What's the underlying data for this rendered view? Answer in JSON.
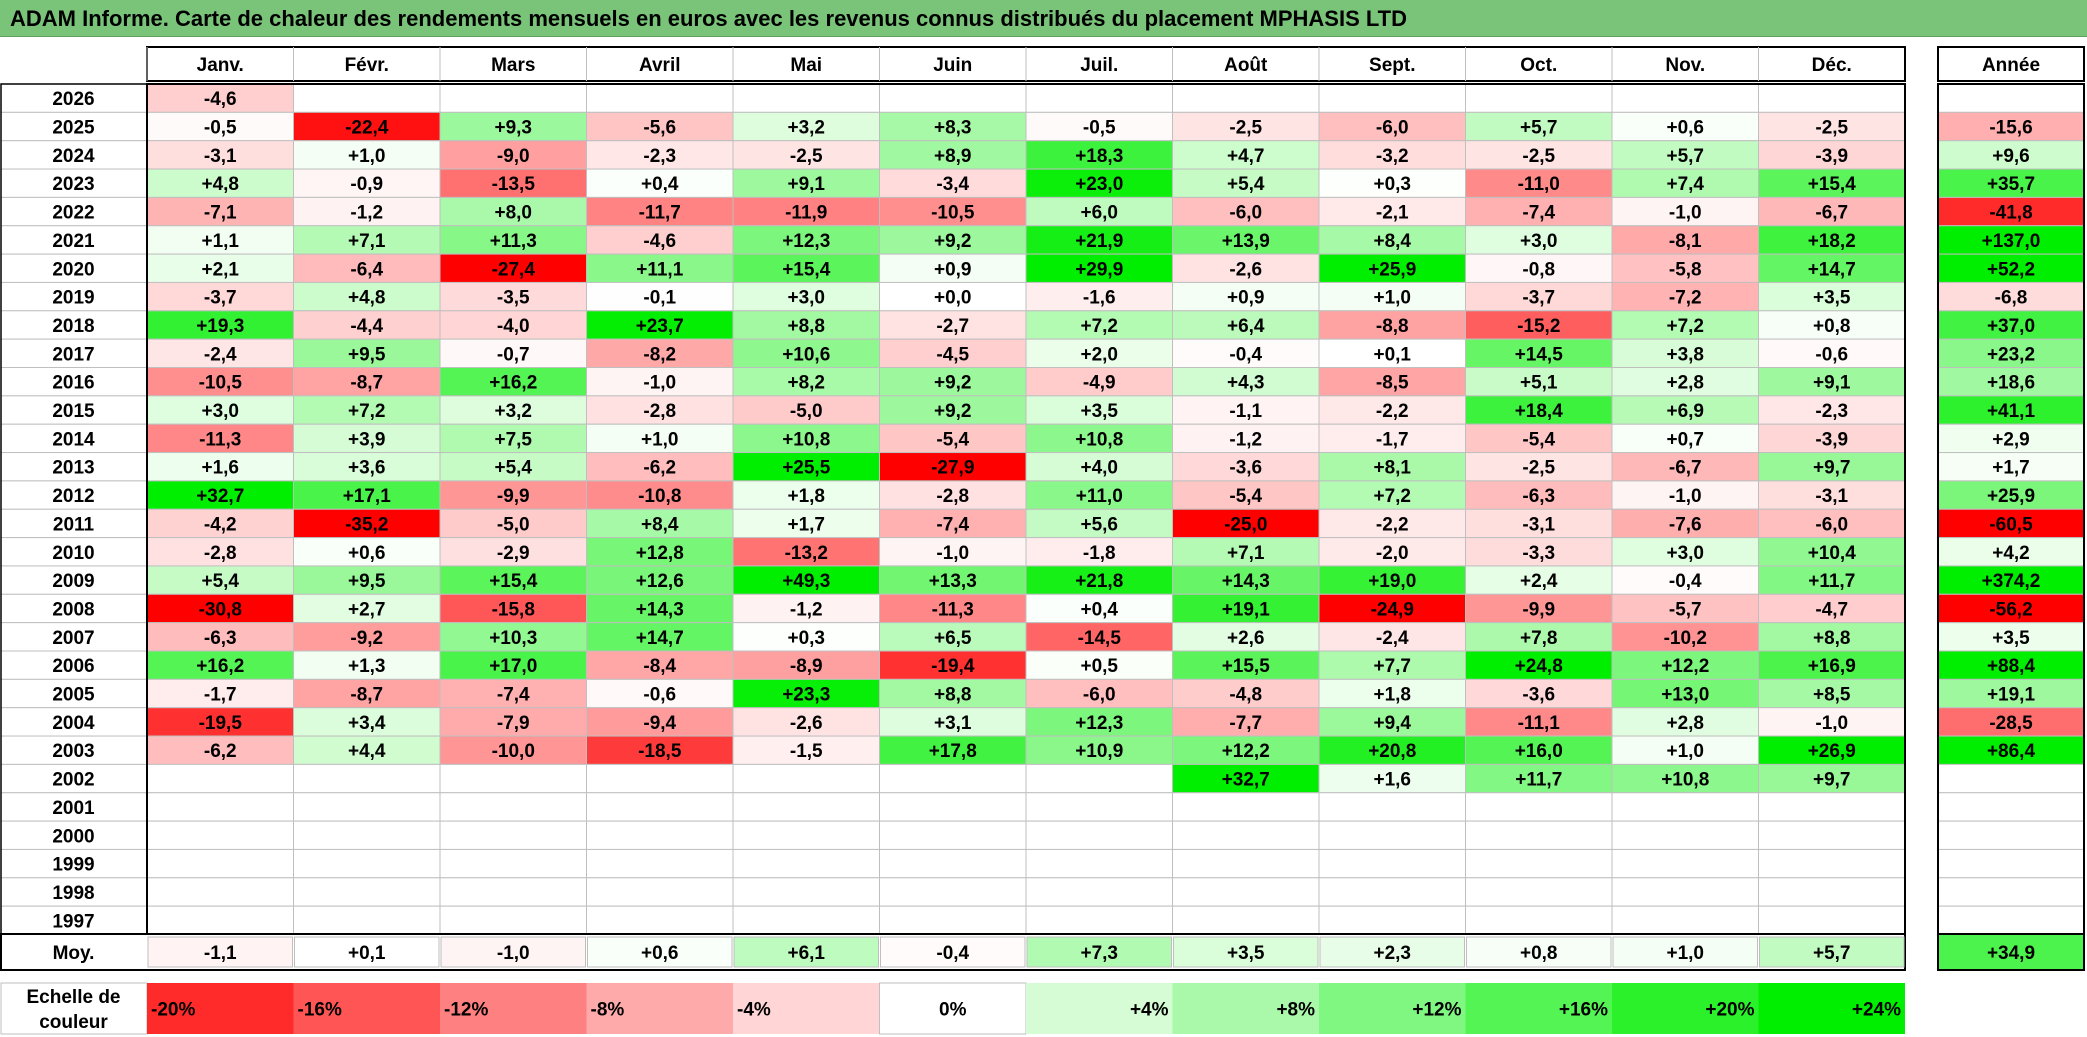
{
  "title": "ADAM Informe. Carte de chaleur des rendements mensuels en euros avec les revenus connus distribués du placement MPHASIS LTD",
  "chart_data": {
    "type": "heatmap",
    "title": "ADAM Informe. Carte de chaleur des rendements mensuels en euros avec les revenus connus distribués du placement MPHASIS LTD",
    "months": [
      "Janv.",
      "Févr.",
      "Mars",
      "Avril",
      "Mai",
      "Juin",
      "Juil.",
      "Août",
      "Sept.",
      "Oct.",
      "Nov.",
      "Déc."
    ],
    "year_header": "Année",
    "rows": [
      {
        "year": "2026",
        "months": [
          "-4,6",
          "",
          "",
          "",
          "",
          "",
          "",
          "",
          "",
          "",
          "",
          ""
        ],
        "annual": ""
      },
      {
        "year": "2025",
        "months": [
          "-0,5",
          "-22,4",
          "+9,3",
          "-5,6",
          "+3,2",
          "+8,3",
          "-0,5",
          "-2,5",
          "-6,0",
          "+5,7",
          "+0,6",
          "-2,5"
        ],
        "annual": "-15,6"
      },
      {
        "year": "2024",
        "months": [
          "-3,1",
          "+1,0",
          "-9,0",
          "-2,3",
          "-2,5",
          "+8,9",
          "+18,3",
          "+4,7",
          "-3,2",
          "-2,5",
          "+5,7",
          "-3,9"
        ],
        "annual": "+9,6"
      },
      {
        "year": "2023",
        "months": [
          "+4,8",
          "-0,9",
          "-13,5",
          "+0,4",
          "+9,1",
          "-3,4",
          "+23,0",
          "+5,4",
          "+0,3",
          "-11,0",
          "+7,4",
          "+15,4"
        ],
        "annual": "+35,7"
      },
      {
        "year": "2022",
        "months": [
          "-7,1",
          "-1,2",
          "+8,0",
          "-11,7",
          "-11,9",
          "-10,5",
          "+6,0",
          "-6,0",
          "-2,1",
          "-7,4",
          "-1,0",
          "-6,7"
        ],
        "annual": "-41,8"
      },
      {
        "year": "2021",
        "months": [
          "+1,1",
          "+7,1",
          "+11,3",
          "-4,6",
          "+12,3",
          "+9,2",
          "+21,9",
          "+13,9",
          "+8,4",
          "+3,0",
          "-8,1",
          "+18,2"
        ],
        "annual": "+137,0"
      },
      {
        "year": "2020",
        "months": [
          "+2,1",
          "-6,4",
          "-27,4",
          "+11,1",
          "+15,4",
          "+0,9",
          "+29,9",
          "-2,6",
          "+25,9",
          "-0,8",
          "-5,8",
          "+14,7"
        ],
        "annual": "+52,2"
      },
      {
        "year": "2019",
        "months": [
          "-3,7",
          "+4,8",
          "-3,5",
          "-0,1",
          "+3,0",
          "+0,0",
          "-1,6",
          "+0,9",
          "+1,0",
          "-3,7",
          "-7,2",
          "+3,5"
        ],
        "annual": "-6,8"
      },
      {
        "year": "2018",
        "months": [
          "+19,3",
          "-4,4",
          "-4,0",
          "+23,7",
          "+8,8",
          "-2,7",
          "+7,2",
          "+6,4",
          "-8,8",
          "-15,2",
          "+7,2",
          "+0,8"
        ],
        "annual": "+37,0"
      },
      {
        "year": "2017",
        "months": [
          "-2,4",
          "+9,5",
          "-0,7",
          "-8,2",
          "+10,6",
          "-4,5",
          "+2,0",
          "-0,4",
          "+0,1",
          "+14,5",
          "+3,8",
          "-0,6"
        ],
        "annual": "+23,2"
      },
      {
        "year": "2016",
        "months": [
          "-10,5",
          "-8,7",
          "+16,2",
          "-1,0",
          "+8,2",
          "+9,2",
          "-4,9",
          "+4,3",
          "-8,5",
          "+5,1",
          "+2,8",
          "+9,1"
        ],
        "annual": "+18,6"
      },
      {
        "year": "2015",
        "months": [
          "+3,0",
          "+7,2",
          "+3,2",
          "-2,8",
          "-5,0",
          "+9,2",
          "+3,5",
          "-1,1",
          "-2,2",
          "+18,4",
          "+6,9",
          "-2,3"
        ],
        "annual": "+41,1"
      },
      {
        "year": "2014",
        "months": [
          "-11,3",
          "+3,9",
          "+7,5",
          "+1,0",
          "+10,8",
          "-5,4",
          "+10,8",
          "-1,2",
          "-1,7",
          "-5,4",
          "+0,7",
          "-3,9"
        ],
        "annual": "+2,9"
      },
      {
        "year": "2013",
        "months": [
          "+1,6",
          "+3,6",
          "+5,4",
          "-6,2",
          "+25,5",
          "-27,9",
          "+4,0",
          "-3,6",
          "+8,1",
          "-2,5",
          "-6,7",
          "+9,7"
        ],
        "annual": "+1,7"
      },
      {
        "year": "2012",
        "months": [
          "+32,7",
          "+17,1",
          "-9,9",
          "-10,8",
          "+1,8",
          "-2,8",
          "+11,0",
          "-5,4",
          "+7,2",
          "-6,3",
          "-1,0",
          "-3,1"
        ],
        "annual": "+25,9"
      },
      {
        "year": "2011",
        "months": [
          "-4,2",
          "-35,2",
          "-5,0",
          "+8,4",
          "+1,7",
          "-7,4",
          "+5,6",
          "-25,0",
          "-2,2",
          "-3,1",
          "-7,6",
          "-6,0"
        ],
        "annual": "-60,5"
      },
      {
        "year": "2010",
        "months": [
          "-2,8",
          "+0,6",
          "-2,9",
          "+12,8",
          "-13,2",
          "-1,0",
          "-1,8",
          "+7,1",
          "-2,0",
          "-3,3",
          "+3,0",
          "+10,4"
        ],
        "annual": "+4,2"
      },
      {
        "year": "2009",
        "months": [
          "+5,4",
          "+9,5",
          "+15,4",
          "+12,6",
          "+49,3",
          "+13,3",
          "+21,8",
          "+14,3",
          "+19,0",
          "+2,4",
          "-0,4",
          "+11,7"
        ],
        "annual": "+374,2"
      },
      {
        "year": "2008",
        "months": [
          "-30,8",
          "+2,7",
          "-15,8",
          "+14,3",
          "-1,2",
          "-11,3",
          "+0,4",
          "+19,1",
          "-24,9",
          "-9,9",
          "-5,7",
          "-4,7"
        ],
        "annual": "-56,2"
      },
      {
        "year": "2007",
        "months": [
          "-6,3",
          "-9,2",
          "+10,3",
          "+14,7",
          "+0,3",
          "+6,5",
          "-14,5",
          "+2,6",
          "-2,4",
          "+7,8",
          "-10,2",
          "+8,8"
        ],
        "annual": "+3,5"
      },
      {
        "year": "2006",
        "months": [
          "+16,2",
          "+1,3",
          "+17,0",
          "-8,4",
          "-8,9",
          "-19,4",
          "+0,5",
          "+15,5",
          "+7,7",
          "+24,8",
          "+12,2",
          "+16,9"
        ],
        "annual": "+88,4"
      },
      {
        "year": "2005",
        "months": [
          "-1,7",
          "-8,7",
          "-7,4",
          "-0,6",
          "+23,3",
          "+8,8",
          "-6,0",
          "-4,8",
          "+1,8",
          "-3,6",
          "+13,0",
          "+8,5"
        ],
        "annual": "+19,1"
      },
      {
        "year": "2004",
        "months": [
          "-19,5",
          "+3,4",
          "-7,9",
          "-9,4",
          "-2,6",
          "+3,1",
          "+12,3",
          "-7,7",
          "+9,4",
          "-11,1",
          "+2,8",
          "-1,0"
        ],
        "annual": "-28,5"
      },
      {
        "year": "2003",
        "months": [
          "-6,2",
          "+4,4",
          "-10,0",
          "-18,5",
          "-1,5",
          "+17,8",
          "+10,9",
          "+12,2",
          "+20,8",
          "+16,0",
          "+1,0",
          "+26,9"
        ],
        "annual": "+86,4"
      },
      {
        "year": "2002",
        "months": [
          "",
          "",
          "",
          "",
          "",
          "",
          "",
          "+32,7",
          "+1,6",
          "+11,7",
          "+10,8",
          "+9,7"
        ],
        "annual": ""
      },
      {
        "year": "2001",
        "months": [
          "",
          "",
          "",
          "",
          "",
          "",
          "",
          "",
          "",
          "",
          "",
          ""
        ],
        "annual": ""
      },
      {
        "year": "2000",
        "months": [
          "",
          "",
          "",
          "",
          "",
          "",
          "",
          "",
          "",
          "",
          "",
          ""
        ],
        "annual": ""
      },
      {
        "year": "1999",
        "months": [
          "",
          "",
          "",
          "",
          "",
          "",
          "",
          "",
          "",
          "",
          "",
          ""
        ],
        "annual": ""
      },
      {
        "year": "1998",
        "months": [
          "",
          "",
          "",
          "",
          "",
          "",
          "",
          "",
          "",
          "",
          "",
          ""
        ],
        "annual": ""
      },
      {
        "year": "1997",
        "months": [
          "",
          "",
          "",
          "",
          "",
          "",
          "",
          "",
          "",
          "",
          "",
          ""
        ],
        "annual": ""
      }
    ],
    "average": {
      "label": "Moy.",
      "months": [
        "-1,1",
        "+0,1",
        "-1,0",
        "+0,6",
        "+6,1",
        "-0,4",
        "+7,3",
        "+3,5",
        "+2,3",
        "+0,8",
        "+1,0",
        "+5,7"
      ],
      "annual": "+34,9"
    },
    "scale": {
      "label_lines": [
        "Echelle de",
        "couleur"
      ],
      "labels": [
        "-20%",
        "-16%",
        "-12%",
        "-8%",
        "-4%",
        "0%",
        "+4%",
        "+8%",
        "+12%",
        "+16%",
        "+20%",
        "+24%"
      ],
      "values": [
        -20,
        -16,
        -12,
        -8,
        -4,
        0,
        4,
        8,
        12,
        16,
        20,
        24
      ]
    },
    "colors": {
      "negative": "#ff0000",
      "positive": "#00ee00",
      "neutral": "#ffffff",
      "title_background": "#7ac47a",
      "grid": "#bfbfbf",
      "frame": "#000000"
    }
  }
}
